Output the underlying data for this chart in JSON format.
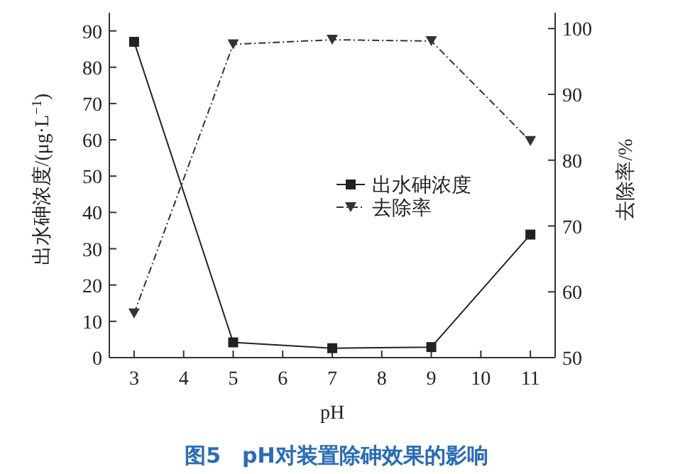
{
  "chart_data": {
    "type": "line",
    "title": "图5　pH对装置除砷效果的影响",
    "xlabel": "pH",
    "ylabel": "出水砷浓度/(μg·L$^{−1}$)",
    "y2label": "去除率/%",
    "x": [
      3,
      5,
      7,
      9,
      11
    ],
    "series": [
      {
        "name": "出水砷浓度",
        "color": "#222222",
        "values": [
          87.0,
          4.2,
          2.6,
          2.9,
          33.9
        ],
        "marker": "square",
        "line_style": "solid"
      },
      {
        "name": "去除率",
        "color": "#333333",
        "values": [
          56.7,
          97.6,
          98.3,
          98.1,
          82.9
        ],
        "marker": "triangle",
        "line_style": "dashed",
        "axis": "y2"
      }
    ],
    "xlim": [
      2.5,
      11.5
    ],
    "xticks": [
      3,
      4,
      5,
      6,
      7,
      8,
      9,
      10,
      11
    ],
    "ylim": [
      0,
      95
    ],
    "yticks": [
      0,
      10,
      20,
      30,
      40,
      50,
      60,
      70,
      80,
      90
    ],
    "y2lim": [
      50,
      102.4
    ],
    "y2ticks": [
      50,
      60,
      70,
      80,
      90,
      100
    ],
    "legend": "right",
    "grid": false
  }
}
